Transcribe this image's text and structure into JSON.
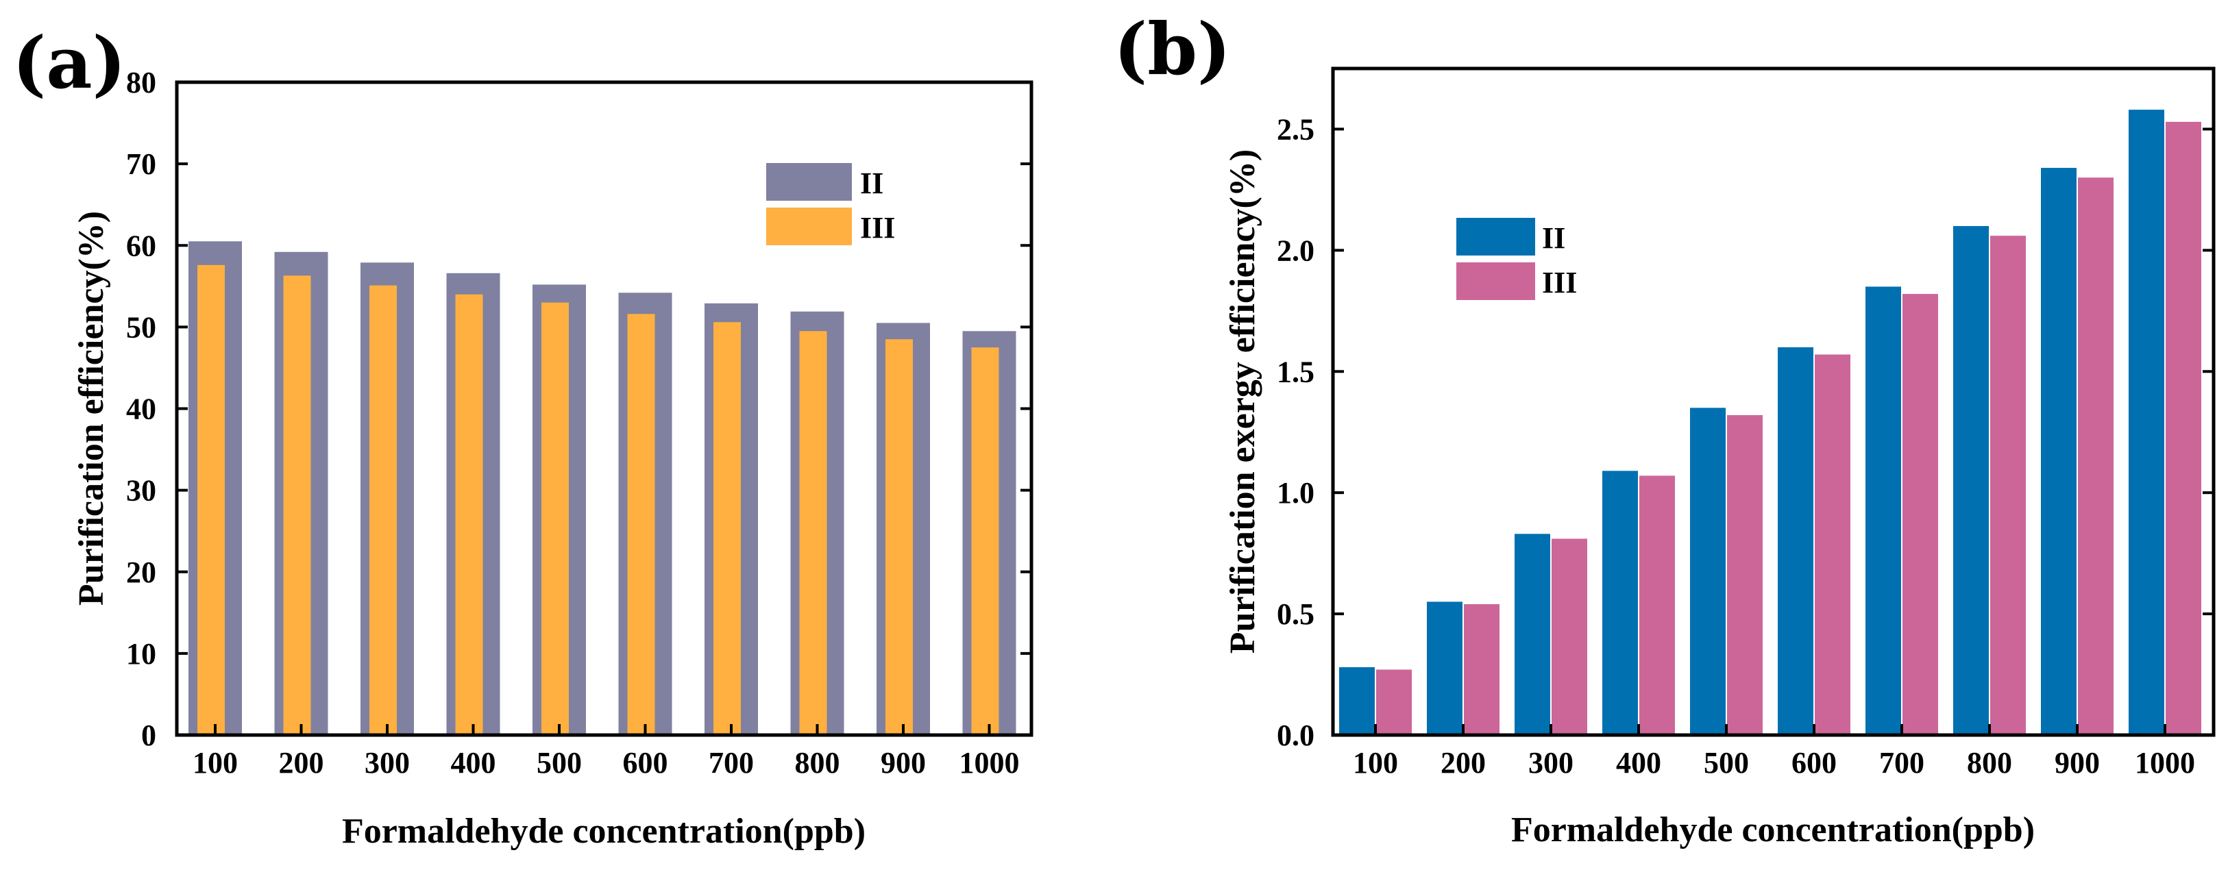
{
  "chart_data": [
    {
      "panel": "(a)",
      "type": "bar",
      "style": "overlapped",
      "xlabel": "Formaldehyde concentration(ppb)",
      "ylabel": "Purification efficiency(%)",
      "ylim": [
        0,
        80
      ],
      "yticks": [
        0,
        10,
        20,
        30,
        40,
        50,
        60,
        70,
        80
      ],
      "categories": [
        "100",
        "200",
        "300",
        "400",
        "500",
        "600",
        "700",
        "800",
        "900",
        "1000"
      ],
      "series": [
        {
          "name": "II",
          "color": "#8080a0",
          "values": [
            60.5,
            59.2,
            57.9,
            56.6,
            55.2,
            54.2,
            52.9,
            51.9,
            50.5,
            49.5
          ]
        },
        {
          "name": "III",
          "color": "#ffb040",
          "values": [
            57.6,
            56.3,
            55.1,
            54.0,
            53.0,
            51.6,
            50.6,
            49.5,
            48.5,
            47.5
          ]
        }
      ],
      "legend_position": "upper-right"
    },
    {
      "panel": "(b)",
      "type": "bar",
      "style": "grouped",
      "xlabel": "Formaldehyde concentration(ppb)",
      "ylabel": "Purification exergy efficiency(%)",
      "ylim": [
        0,
        2.75
      ],
      "yticks": [
        "0.0",
        "0.5",
        "1.0",
        "1.5",
        "2.0",
        "2.5"
      ],
      "categories": [
        "100",
        "200",
        "300",
        "400",
        "500",
        "600",
        "700",
        "800",
        "900",
        "1000"
      ],
      "series": [
        {
          "name": "II",
          "color": "#0070b0",
          "values": [
            0.28,
            0.55,
            0.83,
            1.09,
            1.35,
            1.6,
            1.85,
            2.1,
            2.34,
            2.58
          ]
        },
        {
          "name": "III",
          "color": "#cc6699",
          "values": [
            0.27,
            0.54,
            0.81,
            1.07,
            1.32,
            1.57,
            1.82,
            2.06,
            2.3,
            2.53
          ]
        }
      ],
      "legend_position": "upper-left"
    }
  ]
}
